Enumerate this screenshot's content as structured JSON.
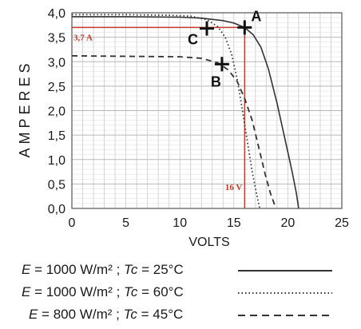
{
  "chart_data": {
    "type": "line",
    "xlabel": "VOLTS",
    "ylabel": "AMPERES",
    "xlim": [
      0,
      25
    ],
    "ylim": [
      0,
      4
    ],
    "xticks": [
      "0",
      "5",
      "10",
      "15",
      "20",
      "25"
    ],
    "yticks": [
      "0,0",
      "0,5",
      "1,0",
      "1,5",
      "2,0",
      "2,5",
      "3,0",
      "3,5",
      "4,0"
    ],
    "grid": true,
    "series": [
      {
        "name": "E = 1000 W/m² ; Tc = 25°C",
        "style": "solid",
        "color": "#333333",
        "x": [
          0,
          5,
          10,
          12,
          14,
          15,
          16,
          16.8,
          17.5,
          18.2,
          19,
          19.8,
          20.4,
          20.8,
          21
        ],
        "y": [
          3.92,
          3.92,
          3.91,
          3.89,
          3.84,
          3.79,
          3.7,
          3.55,
          3.3,
          2.85,
          2.15,
          1.35,
          0.75,
          0.3,
          0
        ]
      },
      {
        "name": "E = 1000 W/m² ; Tc = 60°C",
        "style": "dotted",
        "color": "#333333",
        "x": [
          0,
          5,
          9,
          11,
          12.5,
          13.5,
          14.2,
          14.8,
          15.3,
          15.8,
          16.3,
          16.7,
          17.1,
          17.4
        ],
        "y": [
          3.96,
          3.96,
          3.95,
          3.93,
          3.86,
          3.72,
          3.5,
          3.15,
          2.65,
          2.0,
          1.3,
          0.75,
          0.3,
          0
        ]
      },
      {
        "name": "E = 800 W/m² ; Tc = 45°C",
        "style": "dashed",
        "color": "#333333",
        "x": [
          0,
          5,
          10,
          12,
          13.5,
          14.5,
          15.3,
          16,
          16.7,
          17.3,
          17.9,
          18.4,
          18.9
        ],
        "y": [
          3.12,
          3.11,
          3.1,
          3.07,
          2.98,
          2.83,
          2.6,
          2.25,
          1.8,
          1.25,
          0.7,
          0.3,
          0
        ]
      }
    ],
    "points": [
      {
        "label": "A",
        "x": 16,
        "y": 3.7
      },
      {
        "label": "B",
        "x": 13.9,
        "y": 2.95
      },
      {
        "label": "C",
        "x": 12.5,
        "y": 3.68
      }
    ],
    "reference": {
      "x": 16,
      "y": 3.7,
      "x_label": "16 V",
      "y_label": "3,7 A",
      "color": "#c0392b"
    }
  },
  "legend": [
    {
      "e_label": "E",
      "e_value": " = 1000 W/m² ; ",
      "tc_label": "Tc",
      "tc_value": " = 25°C"
    },
    {
      "e_label": "E",
      "e_value": " = 1000 W/m² ; ",
      "tc_label": "Tc",
      "tc_value": " = 60°C"
    },
    {
      "e_label": "E",
      "e_value": " = 800 W/m² ; ",
      "tc_label": "Tc",
      "tc_value": " = 45°C"
    }
  ]
}
